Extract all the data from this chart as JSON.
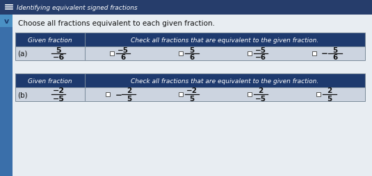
{
  "title": "Identifying equivalent signed fractions",
  "subtitle": "Choose all fractions equivalent to each given fraction.",
  "header_bg": "#1e3a6e",
  "header_text_color": "#ffffff",
  "row_bg": "#ccd4e0",
  "table_border": "#7a8a9a",
  "page_bg": "#c8d0db",
  "top_bar_color": "#263d6b",
  "chevron_bg": "#4a90c4",
  "white_panel_bg": "#e8edf2",
  "table1": {
    "label": "(a)",
    "given_label": "Given fraction",
    "check_label": "Check all fractions that are equivalent to the given fraction.",
    "given_num": "5",
    "given_den": "−6",
    "options": [
      {
        "num": "−5",
        "den": "6",
        "neg_outside": false
      },
      {
        "num": "5",
        "den": "6",
        "neg_outside": false
      },
      {
        "num": "−5",
        "den": "−6",
        "neg_outside": false
      },
      {
        "num": "5",
        "den": "6",
        "neg_outside": true
      }
    ]
  },
  "table2": {
    "label": "(b)",
    "given_label": "Given fraction",
    "check_label": "Check all fractions that are equivalent to the given fraction.",
    "given_num": "−2",
    "given_den": "−5",
    "options": [
      {
        "num": "2",
        "den": "5",
        "neg_outside": true
      },
      {
        "num": "−2",
        "den": "5",
        "neg_outside": false
      },
      {
        "num": "2",
        "den": "−5",
        "neg_outside": false
      },
      {
        "num": "2",
        "den": "5",
        "neg_outside": false
      }
    ]
  }
}
